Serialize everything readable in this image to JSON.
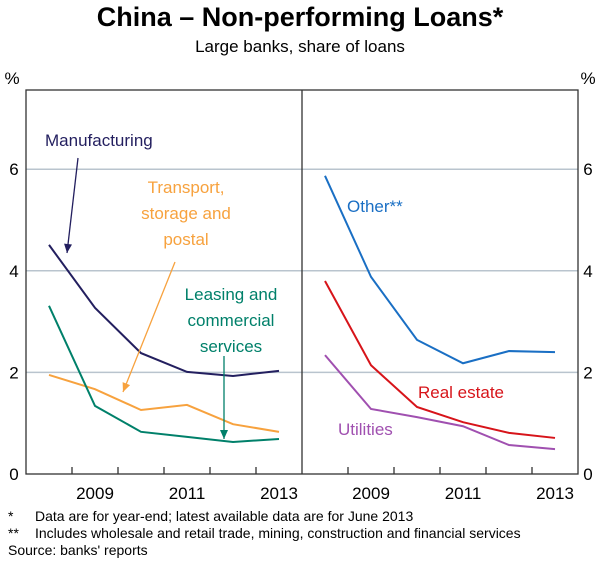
{
  "chart_data": [
    {
      "type": "line",
      "panel": "left",
      "title": "China – Non-performing Loans*",
      "subtitle": "Large banks, share of loans",
      "ylabel": "%",
      "ylim": [
        0,
        7
      ],
      "yticks": [
        0,
        2,
        4,
        6
      ],
      "x": [
        2008,
        2009,
        2010,
        2011,
        2012,
        2013
      ],
      "xticklabels": [
        "2009",
        "2011",
        "2013"
      ],
      "grid": true,
      "series": [
        {
          "name": "Manufacturing",
          "color": "#231f5f",
          "values": [
            4.51,
            3.27,
            2.38,
            2.01,
            1.93,
            2.03
          ]
        },
        {
          "name": "Transport, storage and postal",
          "color": "#f7a23e",
          "values": [
            1.95,
            1.67,
            1.26,
            1.36,
            0.98,
            0.83
          ]
        },
        {
          "name": "Leasing and commercial services",
          "color": "#00806a",
          "values": [
            3.31,
            1.34,
            0.83,
            0.73,
            0.63,
            0.69
          ]
        }
      ]
    },
    {
      "type": "line",
      "panel": "right",
      "ylabel": "%",
      "ylim": [
        0,
        7
      ],
      "yticks": [
        0,
        2,
        4,
        6
      ],
      "x": [
        2008,
        2009,
        2010,
        2011,
        2012,
        2013
      ],
      "xticklabels": [
        "2009",
        "2011",
        "2013"
      ],
      "grid": true,
      "series": [
        {
          "name": "Other**",
          "color": "#1a6fc4",
          "values": [
            5.87,
            3.88,
            2.64,
            2.18,
            2.42,
            2.4
          ]
        },
        {
          "name": "Real estate",
          "color": "#d7141a",
          "values": [
            3.8,
            2.14,
            1.32,
            1.02,
            0.81,
            0.71
          ]
        },
        {
          "name": "Utilities",
          "color": "#a050b0",
          "values": [
            2.34,
            1.28,
            1.12,
            0.94,
            0.57,
            0.49
          ]
        }
      ]
    }
  ],
  "labels": {
    "manufacturing": [
      "Manufacturing"
    ],
    "transport": [
      "Transport,",
      "storage and",
      "postal"
    ],
    "leasing": [
      "Leasing and",
      "commercial",
      "services"
    ],
    "other": [
      "Other**"
    ],
    "real_estate": [
      "Real estate"
    ],
    "utilities": [
      "Utilities"
    ]
  },
  "notes": [
    {
      "marker": "*",
      "text": "Data are for year-end; latest available data are for June 2013"
    },
    {
      "marker": "**",
      "text": "Includes wholesale and retail trade, mining, construction and financial services"
    }
  ],
  "source": "Source: banks' reports"
}
